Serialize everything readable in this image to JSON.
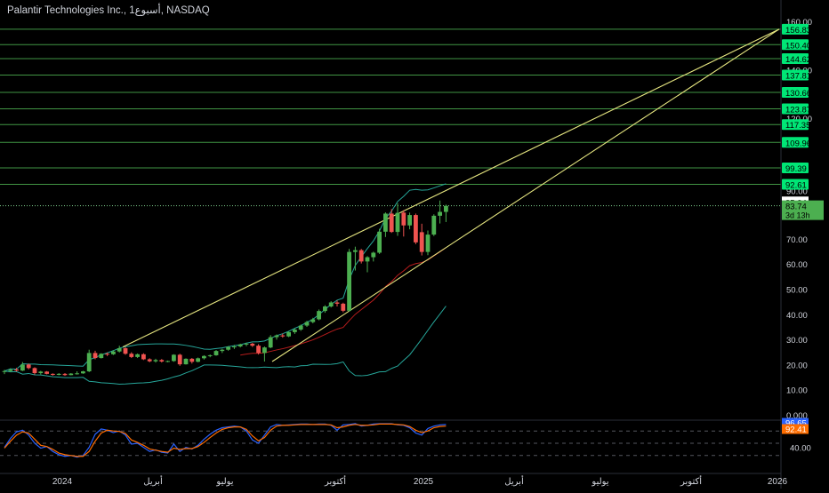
{
  "header": {
    "title": "Palantir Technologies Inc., 1أسبوع, NASDAQ"
  },
  "colors": {
    "background": "#000000",
    "up": "#26a69a",
    "up_body": "#4caf50",
    "down": "#ef5350",
    "level_line": "#4caf50",
    "level_badge": "#00e676",
    "trendline": "#e6e680",
    "ema_red": "#b71c1c",
    "bb_green": "#26a69a",
    "stoch_k": "#2962ff",
    "stoch_d": "#ff6d00",
    "axis_text": "#d1d4dc"
  },
  "price_axis": {
    "ticks": [
      "0.000",
      "10.00",
      "20.00",
      "30.00",
      "40.00",
      "50.00",
      "60.00",
      "70.00",
      "90.00",
      "120.00",
      "140.00",
      "160.00"
    ]
  },
  "time_axis": {
    "labels": [
      "2024",
      "أبريل",
      "يوليو",
      "أكتوبر",
      "2025",
      "أبريل",
      "يوليو",
      "أكتوبر",
      "2026"
    ]
  },
  "current_price": {
    "label": "83.74",
    "countdown": "3d 13h",
    "reference": "85.34"
  },
  "oscillator": {
    "k_label": "96.65",
    "d_label": "92.41",
    "tick": "40.00"
  },
  "chart_data": [
    {
      "type": "candlestick",
      "series_name": "Palantir Technologies Inc., 1أسبوع, NASDAQ",
      "ylim": [
        0,
        160
      ],
      "levels": [
        156.83,
        150.4,
        144.62,
        137.81,
        130.66,
        123.87,
        117.35,
        109.96,
        99.39,
        92.61
      ],
      "candles": [
        [
          17.1,
          17.9,
          16.2,
          17.4
        ],
        [
          17.4,
          18.5,
          17.0,
          18.0
        ],
        [
          18.0,
          18.7,
          17.2,
          17.6
        ],
        [
          17.6,
          21.0,
          17.4,
          20.0
        ],
        [
          20.0,
          20.4,
          18.1,
          18.6
        ],
        [
          18.6,
          18.9,
          16.0,
          16.6
        ],
        [
          16.6,
          17.5,
          16.1,
          17.2
        ],
        [
          17.2,
          17.4,
          16.1,
          16.3
        ],
        [
          16.3,
          16.5,
          15.6,
          15.9
        ],
        [
          15.9,
          16.6,
          15.7,
          16.3
        ],
        [
          16.3,
          16.6,
          15.5,
          15.8
        ],
        [
          15.8,
          16.6,
          15.7,
          16.4
        ],
        [
          16.4,
          17.3,
          16.0,
          16.5
        ],
        [
          16.5,
          17.5,
          16.3,
          17.3
        ],
        [
          17.3,
          25.9,
          17.0,
          24.6
        ],
        [
          24.6,
          25.5,
          22.1,
          22.6
        ],
        [
          22.6,
          24.5,
          22.4,
          24.3
        ],
        [
          24.3,
          24.8,
          23.4,
          24.1
        ],
        [
          24.1,
          25.7,
          23.8,
          25.2
        ],
        [
          25.2,
          27.5,
          24.8,
          26.5
        ],
        [
          26.5,
          27.0,
          23.9,
          24.3
        ],
        [
          24.3,
          24.9,
          22.6,
          23.0
        ],
        [
          23.0,
          24.4,
          22.6,
          24.1
        ],
        [
          24.1,
          24.5,
          21.8,
          22.1
        ],
        [
          22.1,
          22.5,
          20.9,
          21.3
        ],
        [
          21.3,
          22.3,
          20.8,
          21.8
        ],
        [
          21.8,
          22.2,
          20.8,
          21.2
        ],
        [
          21.2,
          21.6,
          20.9,
          21.4
        ],
        [
          21.4,
          24.1,
          21.1,
          23.9
        ],
        [
          23.9,
          24.3,
          19.5,
          20.1
        ],
        [
          20.1,
          22.5,
          20.0,
          22.3
        ],
        [
          22.3,
          22.6,
          20.4,
          21.1
        ],
        [
          21.1,
          22.8,
          20.9,
          22.5
        ],
        [
          22.5,
          23.7,
          22.0,
          23.4
        ],
        [
          23.4,
          24.0,
          22.9,
          23.7
        ],
        [
          23.7,
          25.8,
          23.5,
          25.4
        ],
        [
          25.4,
          26.3,
          24.6,
          25.9
        ],
        [
          25.9,
          27.3,
          25.5,
          27.0
        ],
        [
          27.0,
          27.8,
          26.2,
          27.2
        ],
        [
          27.2,
          28.3,
          26.8,
          28.0
        ],
        [
          28.0,
          28.7,
          27.3,
          28.3
        ],
        [
          28.3,
          28.6,
          27.0,
          27.5
        ],
        [
          27.5,
          28.1,
          24.0,
          24.6
        ],
        [
          24.6,
          27.2,
          21.2,
          26.8
        ],
        [
          26.8,
          31.7,
          26.5,
          30.9
        ],
        [
          30.9,
          32.0,
          29.9,
          31.6
        ],
        [
          31.6,
          32.3,
          30.7,
          31.2
        ],
        [
          31.2,
          33.2,
          30.9,
          32.9
        ],
        [
          32.9,
          34.4,
          32.2,
          33.9
        ],
        [
          33.9,
          35.9,
          33.4,
          35.5
        ],
        [
          35.5,
          37.4,
          35.0,
          36.9
        ],
        [
          36.9,
          38.6,
          36.4,
          38.0
        ],
        [
          38.0,
          41.9,
          37.6,
          41.3
        ],
        [
          41.3,
          43.6,
          40.6,
          43.1
        ],
        [
          43.1,
          45.2,
          42.7,
          44.7
        ],
        [
          44.7,
          45.5,
          43.1,
          44.2
        ],
        [
          44.2,
          44.6,
          40.8,
          41.4
        ],
        [
          41.4,
          66.0,
          41.0,
          64.8
        ],
        [
          64.8,
          66.9,
          57.4,
          65.5
        ],
        [
          65.5,
          66.0,
          60.2,
          61.0
        ],
        [
          61.0,
          63.1,
          56.7,
          62.7
        ],
        [
          62.7,
          64.9,
          61.0,
          64.5
        ],
        [
          64.5,
          74.2,
          64.0,
          73.0
        ],
        [
          73.0,
          81.0,
          70.8,
          80.5
        ],
        [
          80.5,
          82.4,
          72.5,
          72.9
        ],
        [
          72.9,
          84.8,
          71.3,
          80.8
        ],
        [
          80.9,
          81.9,
          71.0,
          75.6
        ],
        [
          75.6,
          80.9,
          74.0,
          79.9
        ],
        [
          79.9,
          80.5,
          67.9,
          68.6
        ],
        [
          72.8,
          76.3,
          63.4,
          64.8
        ],
        [
          64.8,
          73.5,
          63.5,
          71.8
        ],
        [
          71.8,
          80.2,
          71.2,
          79.6
        ],
        [
          79.6,
          85.9,
          76.4,
          81.2
        ],
        [
          81.2,
          84.2,
          77.0,
          83.7
        ]
      ],
      "annotations": [
        "85.34",
        "83.74",
        "3d 13h"
      ]
    },
    {
      "type": "line",
      "series_name": "Stochastic",
      "ylim": [
        0,
        100
      ],
      "ticks": [
        "40.00"
      ],
      "series": [
        {
          "values": [
            40,
            62,
            78,
            82,
            70,
            50,
            38,
            42,
            30,
            22,
            18,
            20,
            16,
            20,
            40,
            72,
            85,
            82,
            76,
            80,
            70,
            48,
            50,
            40,
            30,
            34,
            28,
            26,
            48,
            30,
            40,
            36,
            45,
            60,
            72,
            82,
            88,
            90,
            92,
            90,
            80,
            58,
            50,
            70,
            90,
            96,
            94,
            95,
            96,
            97,
            97,
            96,
            97,
            97,
            94,
            82,
            95,
            96,
            98,
            92,
            94,
            97,
            98,
            98,
            98,
            95,
            94,
            88,
            75,
            70,
            86,
            92,
            95,
            96
          ]
        },
        {
          "values": [
            38,
            55,
            70,
            78,
            75,
            60,
            45,
            42,
            35,
            26,
            22,
            20,
            18,
            18,
            30,
            55,
            75,
            82,
            80,
            79,
            74,
            58,
            52,
            45,
            36,
            33,
            30,
            28,
            38,
            35,
            37,
            37,
            42,
            52,
            64,
            75,
            84,
            88,
            90,
            90,
            84,
            68,
            56,
            64,
            82,
            92,
            94,
            94,
            95,
            96,
            96,
            96,
            96,
            96,
            95,
            88,
            90,
            94,
            96,
            94,
            94,
            95,
            97,
            97,
            97,
            96,
            95,
            91,
            82,
            76,
            80,
            88,
            91,
            92
          ]
        }
      ]
    }
  ]
}
